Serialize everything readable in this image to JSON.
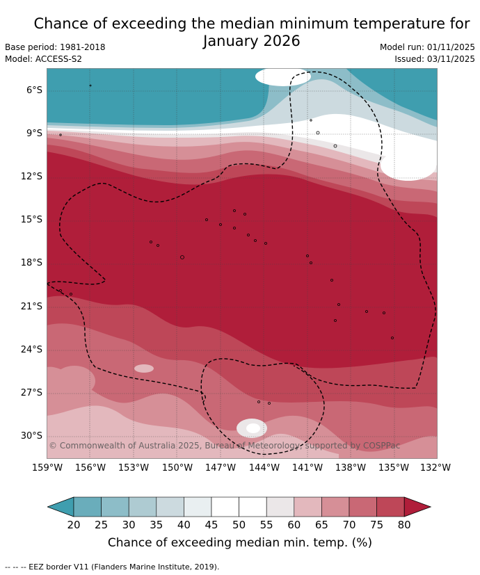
{
  "title_line1": "Chance of exceeding the median minimum temperature for",
  "title_line2": "January 2026",
  "base_period": "Base period: 1981-2018",
  "model": "Model: ACCESS-S2",
  "model_run": "Model run: 01/11/2025",
  "issued": "Issued: 03/11/2025",
  "copyright": "© Commonwealth of Australia 2025, Bureau of Meteorology, supported by COSPPac",
  "footnote": "--  --  -- EEZ border V11 (Flanders Marine Institute, 2019).",
  "map": {
    "lat_ticks": [
      "6°S",
      "9°S",
      "12°S",
      "15°S",
      "18°S",
      "21°S",
      "24°S",
      "27°S",
      "30°S"
    ],
    "lon_ticks": [
      "159°W",
      "156°W",
      "153°W",
      "150°W",
      "147°W",
      "144°W",
      "141°W",
      "138°W",
      "135°W",
      "132°W"
    ],
    "lat_range": [
      -31.5,
      -4.5
    ],
    "lon_range": [
      -159,
      -132
    ]
  },
  "colorbar": {
    "label": "Chance of exceeding median min. temp. (%)",
    "ticks": [
      "20",
      "25",
      "30",
      "35",
      "40",
      "45",
      "50",
      "55",
      "60",
      "65",
      "70",
      "75",
      "80"
    ],
    "colors": [
      "#3f9eaf",
      "#6aadbb",
      "#8dbdc8",
      "#aecbd2",
      "#ccdadf",
      "#e9eff1",
      "#ffffff",
      "#ffffff",
      "#ebe7e8",
      "#e3b8bd",
      "#d68f97",
      "#c96875",
      "#be4758",
      "#b01e3a"
    ]
  }
}
